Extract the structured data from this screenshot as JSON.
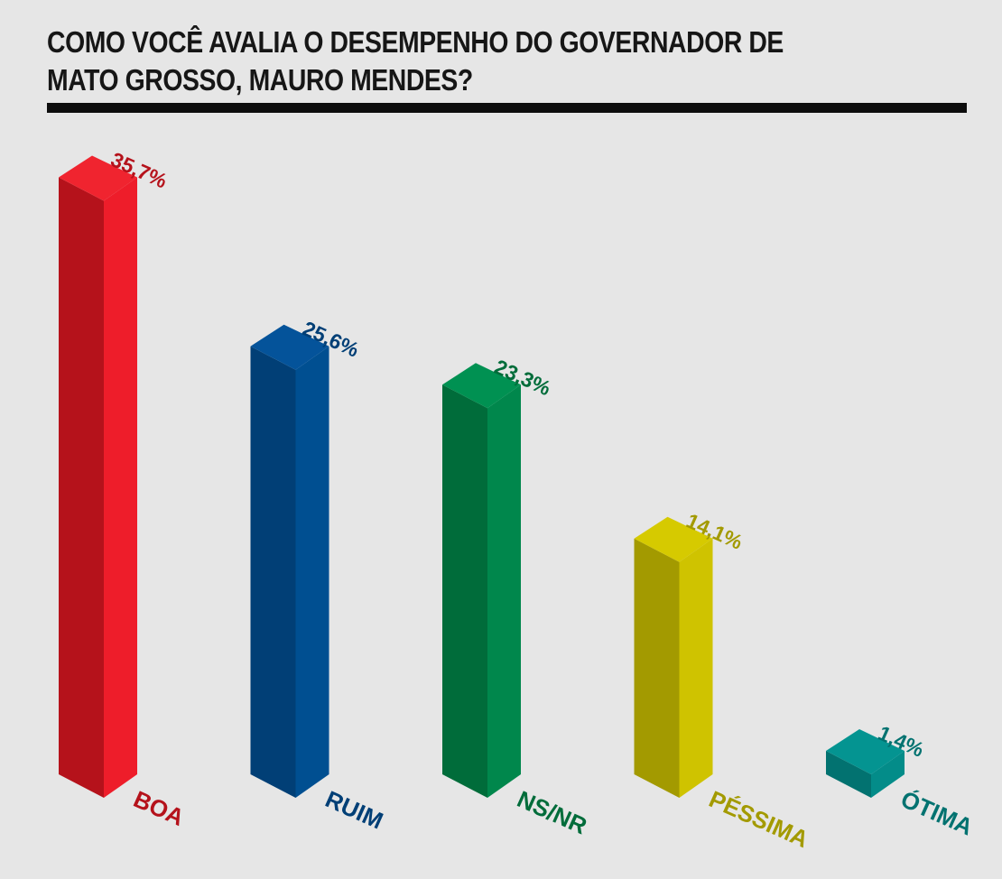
{
  "title": "COMO VOCÊ AVALIA O DESEMPENHO DO GOVERNADOR DE MATO GROSSO, MAURO MENDES?",
  "chart_data": {
    "type": "bar",
    "title": "COMO VOCÊ AVALIA O DESEMPENHO DO GOVERNADOR DE MATO GROSSO, MAURO MENDES?",
    "categories": [
      "BOA",
      "RUIM",
      "NS/NR",
      "PÉSSIMA",
      "ÓTIMA"
    ],
    "values": [
      35.7,
      25.6,
      23.3,
      14.1,
      1.4
    ],
    "value_labels": [
      "35,7%",
      "25,6%",
      "23,3%",
      "14,1%",
      "1,4%"
    ],
    "unit": "%",
    "ylim": [
      0,
      36
    ],
    "grid": false,
    "legend": "none",
    "style": "3d-columns",
    "colors": [
      {
        "front": "#ee1d2a",
        "side": "#b5121b",
        "top": "#f0242f",
        "label": "#b5121b"
      },
      {
        "front": "#004f91",
        "side": "#013f76",
        "top": "#04539a",
        "label": "#013f76"
      },
      {
        "front": "#00874c",
        "side": "#006c3a",
        "top": "#009152",
        "label": "#006c3a"
      },
      {
        "front": "#cfc300",
        "side": "#a39a00",
        "top": "#d6ca00",
        "label": "#a39a00"
      },
      {
        "front": "#038c89",
        "side": "#027270",
        "top": "#049491",
        "label": "#027270"
      }
    ]
  }
}
